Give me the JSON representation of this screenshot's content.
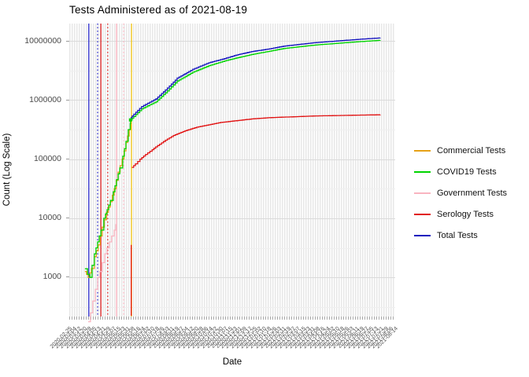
{
  "title": "Tests Administered as of 2021-08-19",
  "y_axis": {
    "title": "Count (Log Scale)",
    "ticks": [
      "10000000",
      "1000000",
      "100000",
      "10000",
      "1000"
    ]
  },
  "x_axis": {
    "title": "Date",
    "tick_labels": [
      "2020-02-25",
      "2020-03-04",
      "2020-03-12",
      "2020-03-20",
      "2020-03-28",
      "2020-04-05",
      "2020-04-13",
      "2020-04-21",
      "2020-04-29",
      "2020-05-07",
      "2020-05-15",
      "2020-05-23",
      "2020-05-31",
      "2020-06-08",
      "2020-06-16",
      "2020-06-24",
      "2020-07-02",
      "2020-07-10",
      "2020-07-18",
      "2020-07-26",
      "2020-08-03",
      "2020-08-11",
      "2020-08-19",
      "2020-08-27",
      "2020-09-04",
      "2020-09-12",
      "2020-09-20",
      "2020-09-28",
      "2020-10-06",
      "2020-10-14",
      "2020-10-22",
      "2020-10-30",
      "2020-11-07",
      "2020-11-15",
      "2020-11-23",
      "2020-12-01",
      "2020-12-09",
      "2020-12-17",
      "2020-12-25",
      "2021-01-02",
      "2021-01-10",
      "2021-01-18",
      "2021-01-26",
      "2021-02-03",
      "2021-02-11",
      "2021-02-19",
      "2021-02-27",
      "2021-03-07",
      "2021-03-15",
      "2021-03-23",
      "2021-03-31",
      "2021-04-08",
      "2021-04-16",
      "2021-04-24",
      "2021-05-02",
      "2021-05-10",
      "2021-05-18",
      "2021-05-26",
      "2021-06-03",
      "2021-06-11",
      "2021-06-19",
      "2021-06-27",
      "2021-07-05",
      "2021-07-13",
      "2021-07-21",
      "2021-07-29",
      "2021-08-06",
      "2021-08-14"
    ]
  },
  "legend": {
    "position": "right",
    "items": [
      {
        "label": "Commercial Tests",
        "color": "#E6A117"
      },
      {
        "label": "COVID19 Tests",
        "color": "#00D400"
      },
      {
        "label": "Government Tests",
        "color": "#F9B4C0"
      },
      {
        "label": "Serology Tests",
        "color": "#E11212"
      },
      {
        "label": "Total Tests",
        "color": "#1414BE"
      }
    ]
  },
  "chart_data": {
    "type": "line",
    "title": "Tests Administered as of 2021-08-19",
    "xlabel": "Date",
    "ylabel": "Count (Log Scale)",
    "y_scale": "log10",
    "ylim": [
      220,
      19600000
    ],
    "grid": true,
    "legend_position": "right",
    "note_x_units": "x is fraction 0-1 across the date axis (labels unreadable in source)",
    "series": [
      {
        "name": "Commercial Tests",
        "color": "#E6A117",
        "segments": [
          [
            [
              0.048,
              1259
            ],
            [
              0.058,
              1000
            ],
            [
              0.068,
              1413
            ],
            [
              0.077,
              2239
            ],
            [
              0.089,
              3548
            ],
            [
              0.101,
              7079
            ],
            [
              0.114,
              12589
            ],
            [
              0.126,
              19055
            ],
            [
              0.138,
              31623
            ],
            [
              0.15,
              60256
            ],
            [
              0.162,
              100000
            ],
            [
              0.174,
              190546
            ],
            [
              0.184,
              316228
            ],
            [
              0.188,
              398107
            ]
          ]
        ]
      },
      {
        "name": "COVID19 Tests",
        "color": "#00D400",
        "marker_point": [
          0.188,
          460000
        ],
        "segments": [
          [
            [
              0.048,
              1400
            ],
            [
              0.056,
              1120
            ],
            [
              0.063,
              1000
            ],
            [
              0.07,
              1600
            ],
            [
              0.077,
              2500
            ],
            [
              0.087,
              4000
            ],
            [
              0.097,
              6300
            ],
            [
              0.106,
              10000
            ],
            [
              0.116,
              14000
            ],
            [
              0.126,
              20000
            ],
            [
              0.135,
              28000
            ],
            [
              0.145,
              45000
            ],
            [
              0.155,
              71000
            ],
            [
              0.164,
              112000
            ],
            [
              0.174,
              200000
            ],
            [
              0.181,
              316000
            ],
            [
              0.187,
              400000
            ],
            [
              0.188,
              460000
            ],
            [
              0.198,
              525000
            ],
            [
              0.222,
              708000
            ],
            [
              0.266,
              933000
            ],
            [
              0.295,
              1318000
            ],
            [
              0.331,
              2089000
            ],
            [
              0.379,
              2951000
            ],
            [
              0.428,
              3802000
            ],
            [
              0.476,
              4571000
            ],
            [
              0.512,
              5129000
            ],
            [
              0.56,
              5888000
            ],
            [
              0.609,
              6607000
            ],
            [
              0.657,
              7413000
            ],
            [
              0.705,
              7943000
            ],
            [
              0.754,
              8511000
            ],
            [
              0.802,
              8913000
            ],
            [
              0.85,
              9333000
            ],
            [
              0.899,
              9772000
            ],
            [
              0.954,
              10230000
            ]
          ]
        ]
      },
      {
        "name": "Government Tests",
        "color": "#F9B4C0",
        "segments": [
          [
            [
              0.058,
              178
            ],
            [
              0.065,
              251
            ],
            [
              0.072,
              398
            ],
            [
              0.08,
              631
            ],
            [
              0.087,
              1000
            ],
            [
              0.094,
              1259
            ],
            [
              0.101,
              1778
            ],
            [
              0.109,
              2512
            ],
            [
              0.116,
              3162
            ],
            [
              0.123,
              3981
            ],
            [
              0.13,
              5012
            ],
            [
              0.138,
              6310
            ],
            [
              0.143,
              7943
            ]
          ]
        ]
      },
      {
        "name": "Serology Tests",
        "color": "#E11212",
        "segments": [
          [
            [
              0.19,
              225
            ],
            [
              0.19,
              3548
            ]
          ],
          [
            [
              0.192,
              72444
            ],
            [
              0.203,
              83176
            ],
            [
              0.217,
              100000
            ],
            [
              0.234,
              120226
            ],
            [
              0.254,
              144544
            ],
            [
              0.271,
              169824
            ],
            [
              0.295,
              208930
            ],
            [
              0.319,
              251189
            ],
            [
              0.355,
              302000
            ],
            [
              0.391,
              346737
            ],
            [
              0.428,
              380189
            ],
            [
              0.464,
              416869
            ],
            [
              0.512,
              446684
            ],
            [
              0.56,
              478630
            ],
            [
              0.609,
              501187
            ],
            [
              0.657,
              512861
            ],
            [
              0.705,
              524807
            ],
            [
              0.754,
              537032
            ],
            [
              0.802,
              543250
            ],
            [
              0.85,
              549541
            ],
            [
              0.899,
              556000
            ],
            [
              0.954,
              562341
            ]
          ]
        ]
      },
      {
        "name": "Total Tests",
        "color": "#1414BE",
        "segments": [
          [
            [
              0.188,
              501000
            ],
            [
              0.198,
              575000
            ],
            [
              0.222,
              776000
            ],
            [
              0.266,
              1047000
            ],
            [
              0.295,
              1479000
            ],
            [
              0.331,
              2344000
            ],
            [
              0.379,
              3311000
            ],
            [
              0.428,
              4266000
            ],
            [
              0.476,
              5012000
            ],
            [
              0.512,
              5754000
            ],
            [
              0.56,
              6607000
            ],
            [
              0.609,
              7244000
            ],
            [
              0.657,
              8128000
            ],
            [
              0.705,
              8710000
            ],
            [
              0.754,
              9333000
            ],
            [
              0.802,
              9772000
            ],
            [
              0.85,
              10233000
            ],
            [
              0.899,
              10715000
            ],
            [
              0.954,
              11220000
            ]
          ]
        ]
      }
    ],
    "vlines": [
      {
        "x": 0.06,
        "color": "#1a1acc",
        "style": "solid"
      },
      {
        "x": 0.087,
        "color": "#1a1acc",
        "style": "dotted"
      },
      {
        "x": 0.097,
        "color": "#dd1111",
        "style": "solid"
      },
      {
        "x": 0.118,
        "color": "#dd1111",
        "style": "dotted"
      },
      {
        "x": 0.145,
        "color": "#ffaebc",
        "style": "solid"
      },
      {
        "x": 0.167,
        "color": "#ffaebc",
        "style": "dotted"
      },
      {
        "x": 0.191,
        "color": "#f3c300",
        "style": "solid"
      }
    ]
  }
}
